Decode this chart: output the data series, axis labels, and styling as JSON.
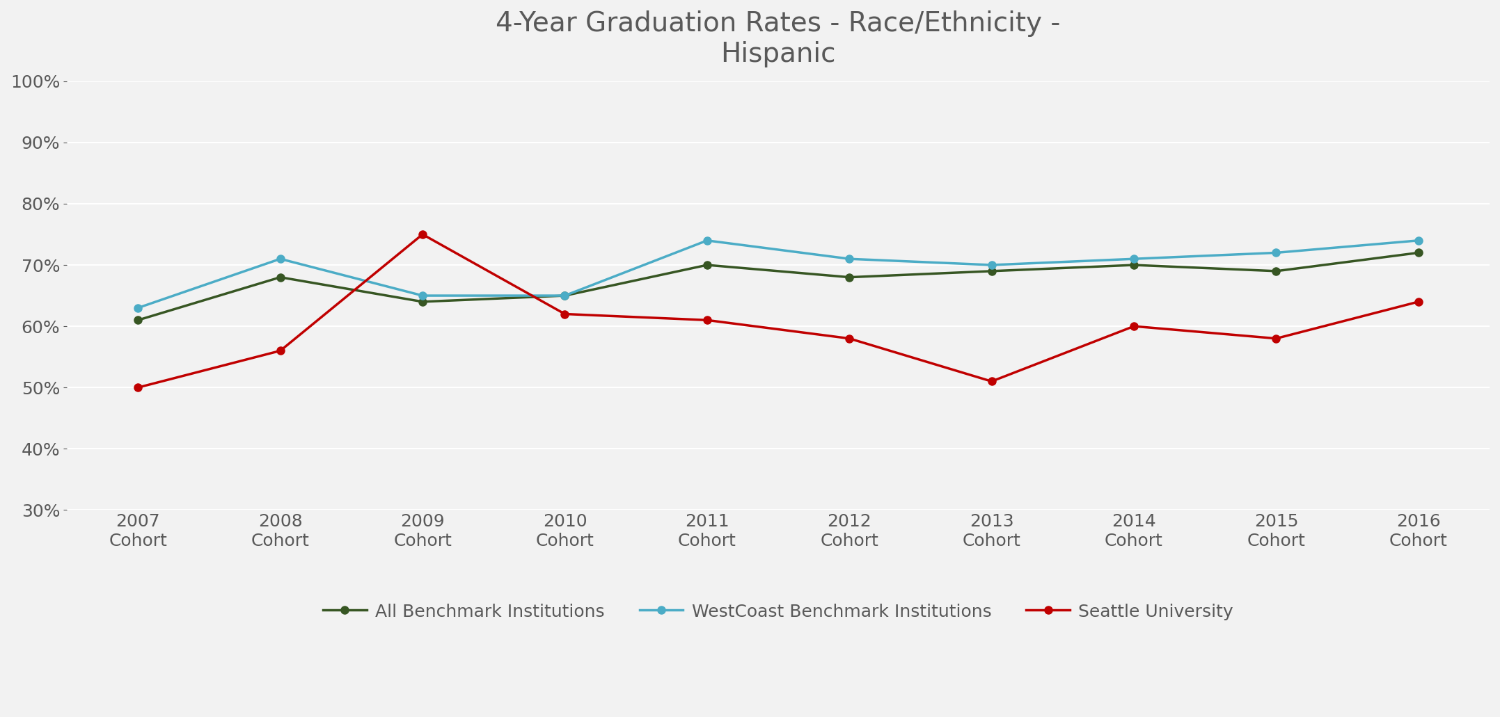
{
  "title": "4-Year Graduation Rates - Race/Ethnicity -\nHispanic",
  "categories": [
    "2007\nCohort",
    "2008\nCohort",
    "2009\nCohort",
    "2010\nCohort",
    "2011\nCohort",
    "2012\nCohort",
    "2013\nCohort",
    "2014\nCohort",
    "2015\nCohort",
    "2016\nCohort"
  ],
  "all_benchmark": [
    0.61,
    0.68,
    0.64,
    0.65,
    0.7,
    0.68,
    0.69,
    0.7,
    0.69,
    0.72
  ],
  "westcoast_benchmark": [
    0.63,
    0.71,
    0.65,
    0.65,
    0.74,
    0.71,
    0.7,
    0.71,
    0.72,
    0.74
  ],
  "seattle_university": [
    0.5,
    0.56,
    0.75,
    0.62,
    0.61,
    0.58,
    0.51,
    0.6,
    0.58,
    0.64
  ],
  "all_benchmark_color": "#375623",
  "westcoast_benchmark_color": "#4bacc6",
  "seattle_university_color": "#c00000",
  "background_color": "#f2f2f2",
  "ylim_min": 0.3,
  "ylim_max": 1.0,
  "yticks": [
    0.3,
    0.4,
    0.5,
    0.6,
    0.7,
    0.8,
    0.9,
    1.0
  ],
  "legend_labels": [
    "All Benchmark Institutions",
    "WestCoast Benchmark Institutions",
    "Seattle University"
  ],
  "title_fontsize": 28,
  "tick_fontsize": 18,
  "legend_fontsize": 18,
  "linewidth": 2.5,
  "markersize": 8
}
